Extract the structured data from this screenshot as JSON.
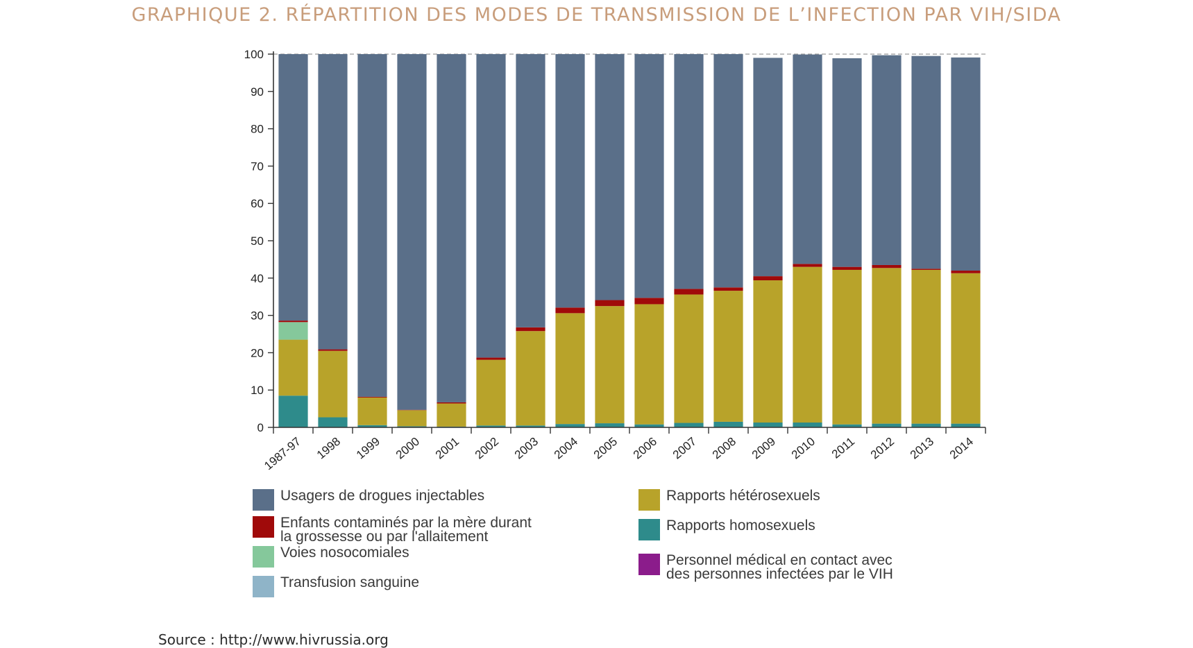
{
  "title": "GRAPHIQUE 2. RÉPARTITION DES MODES DE TRANSMISSION DE L’INFECTION PAR VIH/SIDA",
  "source": "Source : http://www.hivrussia.org",
  "chart_data": {
    "type": "bar",
    "stacked": true,
    "title": "GRAPHIQUE 2. RÉPARTITION DES MODES DE TRANSMISSION DE L’INFECTION PAR VIH/SIDA",
    "xlabel": "",
    "ylabel": "",
    "ylim": [
      0,
      100
    ],
    "yticks": [
      0,
      10,
      20,
      30,
      40,
      50,
      60,
      70,
      80,
      90,
      100
    ],
    "grid": "horizontal dashed at 100",
    "legend_position": "bottom",
    "categories": [
      "1987-97",
      "1998",
      "1999",
      "2000",
      "2001",
      "2002",
      "2003",
      "2004",
      "2005",
      "2006",
      "2007",
      "2008",
      "2009",
      "2010",
      "2011",
      "2012",
      "2013",
      "2014"
    ],
    "series": [
      {
        "name": "Rapports homosexuels",
        "color": "#2e8b8b",
        "values": [
          8.5,
          2.7,
          0.6,
          0.3,
          0.2,
          0.5,
          0.5,
          0.9,
          1.1,
          0.8,
          1.2,
          1.5,
          1.3,
          1.3,
          0.8,
          1.0,
          1.0,
          1.0
        ]
      },
      {
        "name": "Rapports hétérosexuels",
        "color": "#b8a32a",
        "values": [
          15.0,
          17.8,
          7.4,
          4.3,
          6.2,
          17.6,
          25.3,
          29.7,
          31.4,
          32.2,
          34.4,
          35.1,
          38.1,
          41.7,
          41.4,
          41.7,
          41.2,
          40.3
        ]
      },
      {
        "name": "Voies nosocomiales",
        "color": "#85c89b",
        "values": [
          4.7,
          0,
          0,
          0,
          0,
          0,
          0,
          0,
          0,
          0,
          0,
          0,
          0,
          0,
          0,
          0,
          0,
          0
        ]
      },
      {
        "name": "Transfusion sanguine",
        "color": "#8fb4c8",
        "values": [
          0,
          0,
          0,
          0,
          0,
          0,
          0,
          0,
          0,
          0,
          0,
          0,
          0,
          0,
          0,
          0,
          0,
          0
        ]
      },
      {
        "name": "Enfants contaminés par la mère durant\nla grossesse ou par l'allaitement",
        "color": "#a00a0a",
        "values": [
          0.4,
          0.4,
          0.2,
          0.1,
          0.3,
          0.6,
          1.0,
          1.5,
          1.6,
          1.7,
          1.5,
          0.9,
          1.1,
          0.8,
          0.8,
          0.8,
          0.3,
          0.7
        ]
      },
      {
        "name": "Personnel médical en contact avec\ndes personnes infectées par le VIH",
        "color": "#8b1c8b",
        "values": [
          0,
          0,
          0,
          0,
          0,
          0,
          0,
          0,
          0,
          0,
          0,
          0,
          0,
          0,
          0,
          0,
          0,
          0
        ]
      },
      {
        "name": "Usagers de drogues injectables",
        "color": "#5a6f89",
        "values": [
          71.4,
          79.1,
          91.8,
          95.3,
          93.3,
          81.3,
          73.2,
          67.9,
          65.9,
          65.3,
          62.9,
          62.5,
          58.5,
          56.1,
          55.9,
          56.2,
          57.0,
          57.1
        ]
      }
    ]
  },
  "legend": {
    "left": [
      {
        "label": "Usagers de drogues injectables",
        "color": "#5a6f89"
      },
      {
        "label": "Enfants contaminés par la mère durant\nla grossesse ou par l'allaitement",
        "color": "#a00a0a"
      },
      {
        "label": "Voies nosocomiales",
        "color": "#85c89b"
      },
      {
        "label": "Transfusion sanguine",
        "color": "#8fb4c8"
      }
    ],
    "right": [
      {
        "label": "Rapports hétérosexuels",
        "color": "#b8a32a"
      },
      {
        "label": "Rapports homosexuels",
        "color": "#2e8b8b"
      },
      {
        "label": "Personnel médical en contact avec\ndes personnes infectées par le VIH",
        "color": "#8b1c8b"
      }
    ]
  }
}
